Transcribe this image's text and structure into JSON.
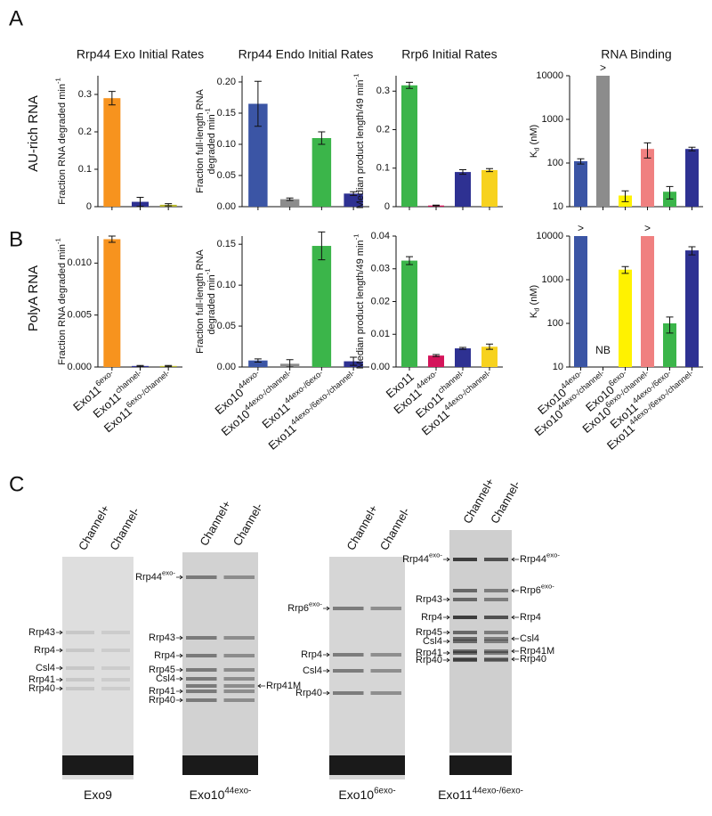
{
  "panels": [
    "A",
    "B",
    "C"
  ],
  "row_labels": [
    "AU-rich RNA",
    "PolyA RNA"
  ],
  "chart_data": [
    {
      "type": "bar",
      "title": "Rrp44 Exo Initial Rates",
      "ylabel": [
        [
          "Fraction RNA degraded min",
          {
            "sup": "-1"
          }
        ]
      ],
      "categories": [
        null,
        null,
        null
      ],
      "values": [
        0.29,
        0.013,
        0.005
      ],
      "errors": [
        0.018,
        0.012,
        0.003
      ],
      "colors": [
        "#f7931e",
        "#2e3192",
        "#b5b52a"
      ],
      "ylim": [
        0,
        0.35
      ],
      "yticks": [
        0,
        0.1,
        0.2,
        0.3
      ]
    },
    {
      "type": "bar",
      "title": "Rrp44 Endo Initial Rates",
      "ylabel": [
        [
          "Fraction full-length RNA"
        ],
        [
          "degraded min",
          {
            "sup": "-1"
          }
        ]
      ],
      "categories": [
        null,
        null,
        null,
        null
      ],
      "values": [
        0.165,
        0.012,
        0.11,
        0.021
      ],
      "errors": [
        0.036,
        0.002,
        0.01,
        0.003
      ],
      "colors": [
        "#3b55a5",
        "#8c8c8c",
        "#3bb54a",
        "#2e3192"
      ],
      "ylim": [
        0,
        0.21
      ],
      "yticks": [
        {
          "value": 0,
          "label": "0.00"
        },
        {
          "value": 0.05,
          "label": "0.05"
        },
        {
          "value": 0.1,
          "label": "0.10"
        },
        {
          "value": 0.15,
          "label": "0.15"
        },
        {
          "value": 0.2,
          "label": "0.20"
        }
      ]
    },
    {
      "type": "bar",
      "title": "Rrp6 Initial Rates",
      "ylabel": [
        [
          "Median product length/49 min",
          {
            "sup": "-1"
          }
        ]
      ],
      "categories": [
        null,
        null,
        null,
        null
      ],
      "values": [
        0.315,
        0.003,
        0.09,
        0.095
      ],
      "errors": [
        0.008,
        0.001,
        0.006,
        0.004
      ],
      "colors": [
        "#3bb54a",
        "#d4145a",
        "#2e3192",
        "#f7d21e"
      ],
      "ylim": [
        0,
        0.34
      ],
      "yticks": [
        0,
        0.1,
        0.2,
        0.3
      ]
    },
    {
      "type": "bar",
      "title": "RNA Binding",
      "ylabel": [
        [
          "K",
          {
            "sub": "d"
          },
          " (nM)"
        ]
      ],
      "log": true,
      "categories": [
        null,
        null,
        null,
        null,
        null,
        null
      ],
      "values": [
        110,
        10000,
        18,
        210,
        22,
        210
      ],
      "errors": [
        15,
        0,
        5,
        80,
        7,
        20
      ],
      "bar_annotations": [
        null,
        ">",
        null,
        null,
        null,
        null
      ],
      "colors": [
        "#3b55a5",
        "#8c8c8c",
        "#fff200",
        "#f08080",
        "#3bb54a",
        "#2e3192"
      ],
      "ylim": [
        10,
        10000
      ],
      "yticks": [
        10,
        100,
        1000,
        10000
      ]
    },
    {
      "type": "bar",
      "ylabel": [
        [
          "Fraction RNA degraded min",
          {
            "sup": "-1"
          }
        ]
      ],
      "categories": [
        [
          "Exo11",
          {
            "sup": "6exo-"
          }
        ],
        [
          "Exo11",
          {
            "sup": "channel-"
          }
        ],
        [
          "Exo11",
          {
            "sup": "6exo-/channel-"
          }
        ]
      ],
      "values": [
        0.0123,
        0.0001,
        0.0001
      ],
      "errors": [
        0.0003,
        5e-05,
        5e-05
      ],
      "colors": [
        "#f7931e",
        "#2e3192",
        "#b5b52a"
      ],
      "ylim": [
        0,
        0.0126
      ],
      "yticks": [
        {
          "value": 0,
          "label": "0.000"
        },
        {
          "value": 0.005,
          "label": "0.005"
        },
        {
          "value": 0.01,
          "label": "0.010"
        }
      ]
    },
    {
      "type": "bar",
      "ylabel": [
        [
          "Fraction full-length RNA"
        ],
        [
          "degraded min",
          {
            "sup": "-1"
          }
        ]
      ],
      "categories": [
        [
          "Exo10",
          {
            "sup": "44exo-"
          }
        ],
        [
          "Exo10",
          {
            "sup": "44exo-/channel-"
          }
        ],
        [
          "Exo11",
          {
            "sup": "44exo-/6exo-"
          }
        ],
        [
          "Exo11",
          {
            "sup": "44exo-/6exo-/channel-"
          }
        ]
      ],
      "values": [
        0.008,
        0.004,
        0.148,
        0.007
      ],
      "errors": [
        0.002,
        0.005,
        0.017,
        0.005
      ],
      "colors": [
        "#3b55a5",
        "#8c8c8c",
        "#3bb54a",
        "#2e3192"
      ],
      "ylim": [
        0,
        0.16
      ],
      "yticks": [
        {
          "value": 0,
          "label": "0.00"
        },
        {
          "value": 0.05,
          "label": "0.05"
        },
        {
          "value": 0.1,
          "label": "0.10"
        },
        {
          "value": 0.15,
          "label": "0.15"
        }
      ]
    },
    {
      "type": "bar",
      "ylabel": [
        [
          "Median product length/49 min",
          {
            "sup": "-1"
          }
        ]
      ],
      "categories": [
        [
          "Exo11"
        ],
        [
          "Exo11",
          {
            "sup": "44exo-"
          }
        ],
        [
          "Exo11",
          {
            "sup": "channel-"
          }
        ],
        [
          "Exo11",
          {
            "sup": "44exo-/channel-"
          }
        ]
      ],
      "values": [
        0.0325,
        0.0035,
        0.0057,
        0.0062
      ],
      "errors": [
        0.0012,
        0.0003,
        0.0003,
        0.0008
      ],
      "colors": [
        "#3bb54a",
        "#d4145a",
        "#2e3192",
        "#f7d21e"
      ],
      "ylim": [
        0,
        0.04
      ],
      "yticks": [
        {
          "value": 0,
          "label": "0.00"
        },
        {
          "value": 0.01,
          "label": "0.01"
        },
        {
          "value": 0.02,
          "label": "0.02"
        },
        {
          "value": 0.03,
          "label": "0.03"
        },
        {
          "value": 0.04,
          "label": "0.04"
        }
      ]
    },
    {
      "type": "bar",
      "ylabel": [
        [
          "K",
          {
            "sub": "d"
          },
          " (nM)"
        ]
      ],
      "log": true,
      "categories": [
        [
          "Exo10",
          {
            "sup": "44exo-"
          }
        ],
        [
          "Exo10",
          {
            "sup": "44exo-/channel-"
          }
        ],
        [
          "Exo10",
          {
            "sup": "6exo-"
          }
        ],
        [
          "Exo10",
          {
            "sup": "6exo-/channel-"
          }
        ],
        [
          "Exo11",
          {
            "sup": "44exo-/6exo-"
          }
        ],
        [
          "Exo11",
          {
            "sup": "44exo-/6exo-/channel-"
          }
        ]
      ],
      "values": [
        10000,
        null,
        1700,
        10000,
        100,
        4700
      ],
      "errors": [
        0,
        null,
        300,
        0,
        40,
        1000
      ],
      "bar_annotations": [
        ">",
        "NB",
        null,
        ">",
        null,
        null
      ],
      "colors": [
        "#3b55a5",
        "#8c8c8c",
        "#fff200",
        "#f08080",
        "#3bb54a",
        "#2e3192"
      ],
      "ylim": [
        10,
        10000
      ],
      "yticks": [
        10,
        100,
        1000,
        10000
      ]
    }
  ],
  "gels": [
    {
      "title": [
        "Exo9"
      ],
      "lanes": [
        "Channel+",
        "Channel-"
      ],
      "left": [
        [
          "Rrp43"
        ],
        [
          "Rrp4"
        ],
        [
          "Csl4"
        ],
        [
          "Rrp41"
        ],
        [
          "Rrp40"
        ]
      ],
      "right": []
    },
    {
      "title": [
        "Exo10",
        {
          "sup": "44exo-"
        }
      ],
      "lanes": [
        "Channel+",
        "Channel-"
      ],
      "left": [
        [
          "Rrp44",
          {
            "sup": "exo-"
          }
        ],
        [
          "Rrp43"
        ],
        [
          "Rrp4"
        ],
        [
          "Rrp45"
        ],
        [
          "Csl4"
        ],
        [
          "Rrp41"
        ],
        [
          "Rrp40"
        ]
      ],
      "right": [
        [
          "Rrp41M"
        ]
      ]
    },
    {
      "title": [
        "Exo10",
        {
          "sup": "6exo-"
        }
      ],
      "lanes": [
        "Channel+",
        "Channel-"
      ],
      "left": [
        [
          "Rrp6",
          {
            "sup": "exo-"
          }
        ],
        [
          "Rrp4"
        ],
        [
          "Csl4"
        ],
        [
          "Rrp40"
        ]
      ],
      "right": []
    },
    {
      "title": [
        "Exo11",
        {
          "sup": "44exo-/6exo-"
        }
      ],
      "lanes": [
        "Channel+",
        "Channel-"
      ],
      "left": [
        [
          "Rrp44",
          {
            "sup": "exo-"
          }
        ],
        [
          "Rrp43"
        ],
        [
          "Rrp4"
        ],
        [
          "Rrp45"
        ],
        [
          "Csl4"
        ],
        [
          "Rrp41"
        ],
        [
          "Rrp40"
        ]
      ],
      "right": [
        [
          "Rrp44",
          {
            "sup": "exo-"
          }
        ],
        [
          "Rrp6",
          {
            "sup": "exo-"
          }
        ],
        [
          "Rrp4"
        ],
        [
          "Csl4"
        ],
        [
          "Rrp41M"
        ],
        [
          "Rrp40"
        ]
      ]
    }
  ]
}
